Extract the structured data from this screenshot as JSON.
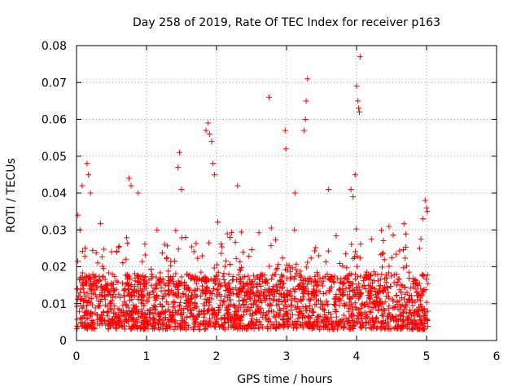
{
  "chart_data": {
    "type": "scatter",
    "title": "Day 258 of 2019, Rate Of TEC Index for receiver p163",
    "xlabel": "GPS time / hours",
    "ylabel": "ROTI / TECUs",
    "xlim": [
      0,
      6
    ],
    "ylim": [
      0,
      0.08
    ],
    "xticks": [
      "0",
      "1",
      "2",
      "3",
      "4",
      "5",
      "6"
    ],
    "yticks": [
      "0",
      "0.01",
      "0.02",
      "0.03",
      "0.04",
      "0.05",
      "0.06",
      "0.07",
      "0.08"
    ],
    "grid": true,
    "marker": "+",
    "series": [
      {
        "name": "ROTI",
        "color": "#ff0000",
        "x_range": [
          0,
          5.02
        ],
        "baseline_range": [
          0.003,
          0.018
        ],
        "density_points": 2200,
        "notable_points": [
          {
            "x": 0.02,
            "y": 0.034
          },
          {
            "x": 0.05,
            "y": 0.03
          },
          {
            "x": 0.08,
            "y": 0.042
          },
          {
            "x": 0.15,
            "y": 0.048
          },
          {
            "x": 0.17,
            "y": 0.045
          },
          {
            "x": 0.2,
            "y": 0.04
          },
          {
            "x": 0.75,
            "y": 0.044
          },
          {
            "x": 0.78,
            "y": 0.042
          },
          {
            "x": 0.88,
            "y": 0.04
          },
          {
            "x": 1.15,
            "y": 0.03
          },
          {
            "x": 1.45,
            "y": 0.047
          },
          {
            "x": 1.47,
            "y": 0.051
          },
          {
            "x": 1.5,
            "y": 0.041
          },
          {
            "x": 1.85,
            "y": 0.057
          },
          {
            "x": 1.88,
            "y": 0.059
          },
          {
            "x": 1.9,
            "y": 0.056
          },
          {
            "x": 1.93,
            "y": 0.054
          },
          {
            "x": 1.95,
            "y": 0.048
          },
          {
            "x": 1.97,
            "y": 0.045
          },
          {
            "x": 2.3,
            "y": 0.042
          },
          {
            "x": 2.75,
            "y": 0.066
          },
          {
            "x": 2.98,
            "y": 0.057
          },
          {
            "x": 2.99,
            "y": 0.052
          },
          {
            "x": 3.12,
            "y": 0.04
          },
          {
            "x": 3.25,
            "y": 0.057
          },
          {
            "x": 3.27,
            "y": 0.06
          },
          {
            "x": 3.28,
            "y": 0.065
          },
          {
            "x": 3.3,
            "y": 0.071
          },
          {
            "x": 3.6,
            "y": 0.041
          },
          {
            "x": 3.92,
            "y": 0.041
          },
          {
            "x": 3.95,
            "y": 0.039
          },
          {
            "x": 3.98,
            "y": 0.045
          },
          {
            "x": 4.0,
            "y": 0.069
          },
          {
            "x": 4.02,
            "y": 0.065
          },
          {
            "x": 4.03,
            "y": 0.063
          },
          {
            "x": 4.04,
            "y": 0.062
          },
          {
            "x": 4.05,
            "y": 0.077
          },
          {
            "x": 4.9,
            "y": 0.025
          },
          {
            "x": 4.95,
            "y": 0.033
          },
          {
            "x": 4.98,
            "y": 0.038
          },
          {
            "x": 5.0,
            "y": 0.036
          },
          {
            "x": 5.01,
            "y": 0.035
          }
        ]
      }
    ]
  }
}
